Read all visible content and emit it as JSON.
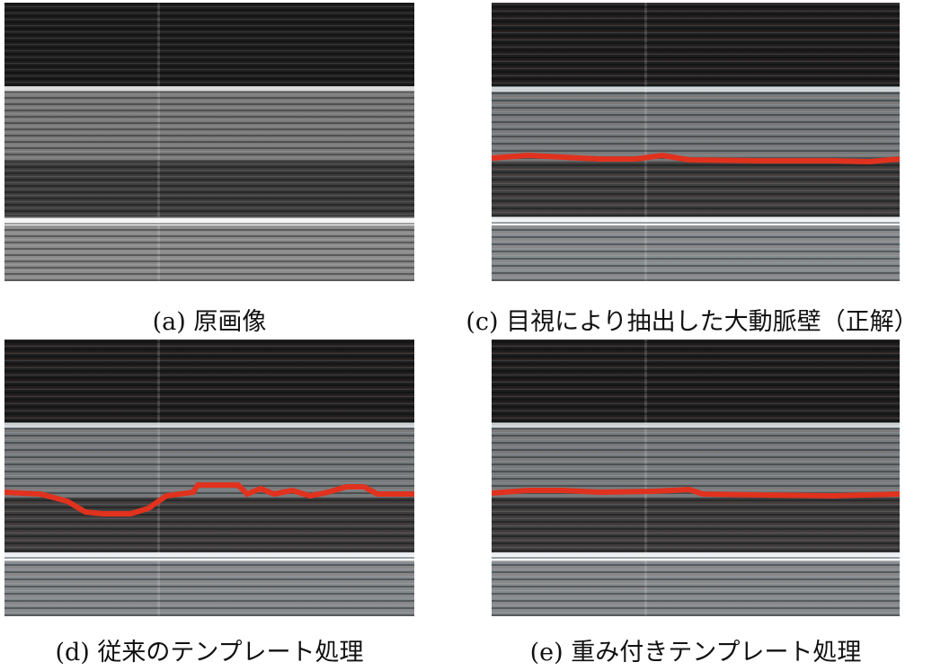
{
  "figure": {
    "captions": [
      "(a) 原画像",
      "(c) 目視により抽出した大動脈壁（正解）",
      "(d) 従来のテンプレート処理",
      "(e) 重み付きテンプレート処理"
    ]
  }
}
